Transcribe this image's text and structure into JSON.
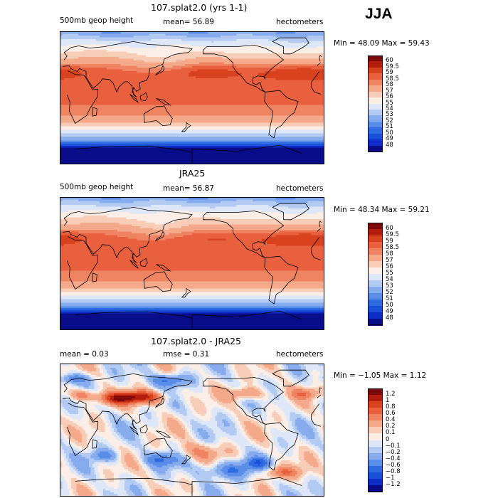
{
  "season": "JJA",
  "panels": [
    {
      "title": "107.splat2.0 (yrs 1-1)",
      "left_text": "500mb geop height",
      "mean_text": "mean=  56.89",
      "rmse_text": "",
      "units": "hectometers",
      "min_max": "Min =  48.09 Max =  59.43",
      "field": "model"
    },
    {
      "title": "JRA25",
      "left_text": "500mb geop height",
      "mean_text": "mean=  56.87",
      "rmse_text": "",
      "units": "hectometers",
      "min_max": "Min =  48.34 Max =  59.21",
      "field": "obs"
    },
    {
      "title": "107.splat2.0 - JRA25",
      "left_text": "mean =    0.03",
      "mean_text": "rmse =    0.31",
      "rmse_text": "",
      "units": "hectometers",
      "min_max": "Min = −1.05 Max =   1.12",
      "field": "diff"
    }
  ],
  "chart_data": [
    {
      "type": "heatmap",
      "title": "107.splat2.0 (yrs 1-1)",
      "variable": "500mb geop height",
      "units": "hectometers",
      "mean": 56.89,
      "min": 48.09,
      "max": 59.43,
      "colorbar": {
        "levels": [
          48,
          49,
          50,
          51,
          52,
          53,
          54,
          55,
          56,
          57,
          58,
          58.5,
          59,
          59.5,
          60
        ],
        "labels": [
          "60",
          "59.5",
          "59",
          "58.5",
          "58",
          "57",
          "56",
          "55",
          "54",
          "53",
          "52",
          "51",
          "50",
          "49",
          "48"
        ],
        "colors": [
          "#0a0d8a",
          "#0e2dc8",
          "#1a4fd8",
          "#2f6be0",
          "#5a8de8",
          "#86aced",
          "#b3cbf2",
          "#dde7f8",
          "#fbeee6",
          "#f8cdb8",
          "#f4a98a",
          "#ef8462",
          "#e9603e",
          "#d9421f",
          "#b21d0e",
          "#7c0a0a"
        ]
      }
    },
    {
      "type": "heatmap",
      "title": "JRA25",
      "variable": "500mb geop height",
      "units": "hectometers",
      "mean": 56.87,
      "min": 48.34,
      "max": 59.21,
      "colorbar": {
        "levels": [
          48,
          49,
          50,
          51,
          52,
          53,
          54,
          55,
          56,
          57,
          58,
          58.5,
          59,
          59.5,
          60
        ],
        "labels": [
          "60",
          "59.5",
          "59",
          "58.5",
          "58",
          "57",
          "56",
          "55",
          "54",
          "53",
          "52",
          "51",
          "50",
          "49",
          "48"
        ],
        "colors": [
          "#0a0d8a",
          "#0e2dc8",
          "#1a4fd8",
          "#2f6be0",
          "#5a8de8",
          "#86aced",
          "#b3cbf2",
          "#dde7f8",
          "#fbeee6",
          "#f8cdb8",
          "#f4a98a",
          "#ef8462",
          "#e9603e",
          "#d9421f",
          "#b21d0e",
          "#7c0a0a"
        ]
      }
    },
    {
      "type": "heatmap",
      "title": "107.splat2.0 - JRA25",
      "units": "hectometers",
      "mean": 0.03,
      "rmse": 0.31,
      "min": -1.05,
      "max": 1.12,
      "colorbar": {
        "levels": [
          -1.2,
          -1,
          -0.8,
          -0.6,
          -0.4,
          -0.2,
          -0.1,
          0,
          0.1,
          0.2,
          0.4,
          0.6,
          0.8,
          1,
          1.2
        ],
        "labels": [
          "1.2",
          "1",
          "0.8",
          "0.6",
          "0.4",
          "0.2",
          "0.1",
          "0",
          "−0.1",
          "−0.2",
          "−0.4",
          "−0.6",
          "−0.8",
          "−1",
          "−1.2"
        ],
        "colors": [
          "#0a0d8a",
          "#0e2dc8",
          "#1a4fd8",
          "#2f6be0",
          "#5a8de8",
          "#86aced",
          "#b3cbf2",
          "#dde7f8",
          "#fbeee6",
          "#f8cdb8",
          "#f4a98a",
          "#ef8462",
          "#e9603e",
          "#d9421f",
          "#b21d0e",
          "#7c0a0a"
        ]
      }
    }
  ]
}
